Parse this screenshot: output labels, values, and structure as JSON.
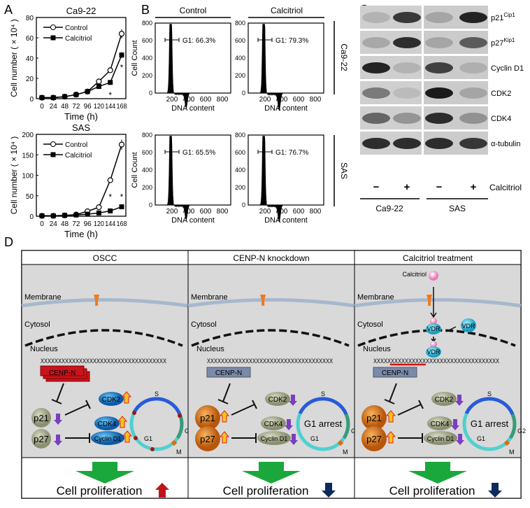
{
  "panel_labels": {
    "a": "A",
    "b": "B",
    "c": "C",
    "d": "D"
  },
  "chart_data": [
    {
      "type": "line",
      "title": "Ca9-22",
      "xlabel": "Time (h)",
      "ylabel": "Cell number ( × 10⁴ )",
      "x": [
        0,
        24,
        48,
        72,
        96,
        120,
        144,
        168
      ],
      "ylim": [
        0,
        80
      ],
      "yticks": [
        0,
        20,
        40,
        60,
        80
      ],
      "series": [
        {
          "name": "Control",
          "values": [
            1,
            1,
            2,
            4,
            7,
            17,
            28,
            64
          ]
        },
        {
          "name": "Calcitriol",
          "values": [
            1,
            1,
            2,
            4,
            7,
            12,
            16,
            43
          ]
        }
      ],
      "significance": [
        {
          "x": 144,
          "label": "*"
        },
        {
          "x": 168,
          "label": "*"
        }
      ]
    },
    {
      "type": "line",
      "title": "SAS",
      "xlabel": "Time (h)",
      "ylabel": "Cell number ( × 10⁴ )",
      "x": [
        0,
        24,
        48,
        72,
        96,
        120,
        144,
        168
      ],
      "ylim": [
        0,
        200
      ],
      "yticks": [
        0,
        50,
        100,
        150,
        200
      ],
      "series": [
        {
          "name": "Control",
          "values": [
            1,
            1,
            2,
            4,
            12,
            22,
            88,
            175
          ]
        },
        {
          "name": "Calcitriol",
          "values": [
            1,
            1,
            2,
            3,
            5,
            8,
            13,
            23
          ]
        }
      ],
      "significance": [
        {
          "x": 144,
          "label": "*"
        },
        {
          "x": 168,
          "label": "*"
        }
      ]
    },
    {
      "type": "histogram",
      "cell": "Ca9-22",
      "condition": "Control",
      "g1_label": "G1: 66.3%",
      "xlabel": "DNA content",
      "ylabel": "Cell Count",
      "xticks": [
        200,
        400,
        600,
        800
      ],
      "yticks": [
        0,
        200,
        400,
        600,
        800
      ]
    },
    {
      "type": "histogram",
      "cell": "Ca9-22",
      "condition": "Calcitriol",
      "g1_label": "G1: 79.3%",
      "xlabel": "DNA content",
      "ylabel": "",
      "xticks": [
        200,
        400,
        600,
        800
      ],
      "yticks": [
        0,
        200,
        400,
        600,
        800
      ]
    },
    {
      "type": "histogram",
      "cell": "SAS",
      "condition": "Control",
      "g1_label": "G1: 65.5%",
      "xlabel": "DNA content",
      "ylabel": "Cell Count",
      "xticks": [
        200,
        400,
        600,
        800
      ],
      "yticks": [
        0,
        200,
        400,
        600,
        800
      ]
    },
    {
      "type": "histogram",
      "cell": "SAS",
      "condition": "Calcitriol",
      "g1_label": "G1: 76.7%",
      "xlabel": "DNA content",
      "ylabel": "",
      "xticks": [
        200,
        400,
        600,
        800
      ],
      "yticks": [
        0,
        200,
        400,
        600,
        800
      ]
    }
  ],
  "panel_b": {
    "col_headers": [
      "Control",
      "Calcitriol"
    ],
    "row_labels": [
      "Ca9-22",
      "SAS"
    ]
  },
  "panel_c": {
    "proteins": [
      {
        "name": "p21",
        "sup": "Cip1",
        "intensity": [
          0.15,
          0.8,
          0.2,
          0.9
        ]
      },
      {
        "name": "p27",
        "sup": "Kip1",
        "intensity": [
          0.2,
          0.85,
          0.2,
          0.6
        ]
      },
      {
        "name": "Cyclin D1",
        "sup": "",
        "intensity": [
          0.9,
          0.15,
          0.75,
          0.15
        ]
      },
      {
        "name": "CDK2",
        "sup": "",
        "intensity": [
          0.45,
          0.1,
          0.95,
          0.2
        ]
      },
      {
        "name": "CDK4",
        "sup": "",
        "intensity": [
          0.55,
          0.3,
          0.85,
          0.3
        ]
      },
      {
        "name": "α-tubulin",
        "sup": "",
        "intensity": [
          0.85,
          0.85,
          0.85,
          0.8
        ]
      }
    ],
    "treatment_signs": [
      "−",
      "+",
      "−",
      "+"
    ],
    "treatment_label": "Calcitriol",
    "cell_lines": [
      "Ca9-22",
      "SAS"
    ]
  },
  "panel_d": {
    "columns": [
      {
        "title": "OSCC",
        "arrest": "",
        "result": "Cell proliferation",
        "trend": "up",
        "p_state": "down",
        "cdk_state": "up"
      },
      {
        "title": "CENP-N knockdown",
        "arrest": "G1 arrest",
        "result": "Cell proliferation",
        "trend": "down",
        "p_state": "up",
        "cdk_state": "down"
      },
      {
        "title": "Calcitriol treatment",
        "arrest": "G1 arrest",
        "result": "Cell proliferation",
        "trend": "down",
        "p_state": "up",
        "cdk_state": "down"
      }
    ],
    "labels": {
      "membrane": "Membrane",
      "cytosol": "Cytosol",
      "nucleus": "Nucleus",
      "cenpn": "CENP-N",
      "p21": "p21",
      "p27": "p27",
      "cdk2": "CDK2",
      "cdk4": "CDK4",
      "cyclin": "Cyclin D1",
      "s": "S",
      "g1": "G1",
      "g2": "G2",
      "m": "M",
      "calcitriol": "Calcitriol",
      "vdr": "VDR"
    },
    "colors": {
      "up_arrow": "#c0141c",
      "down_arrow": "#0d2a5c",
      "green": "#1aa83c",
      "bg": "#d9d9d9"
    }
  }
}
